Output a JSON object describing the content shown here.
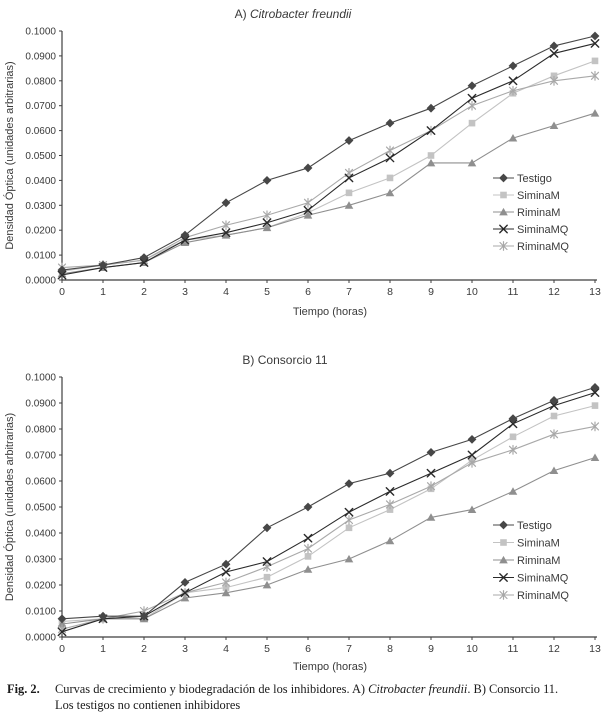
{
  "caption": {
    "label": "Fig. 2.",
    "line1_pre": "Curvas de crecimiento y biodegradación de los inhibidores. A) ",
    "line1_italic": "Citrobacter freundii",
    "line1_post": ". B) Consorcio 11.",
    "line2": "Los  testigos no contienen inhibidores"
  },
  "colors": {
    "axis": "#3f3f3f",
    "text": "#3a3a3a"
  },
  "chart_data": [
    {
      "type": "line",
      "title_parts": [
        {
          "text": "A) ",
          "italic": false
        },
        {
          "text": "Citrobacter freundii",
          "italic": true
        }
      ],
      "xlabel": "Tiempo (horas)",
      "ylabel": "Densidad Óptica (unidades arbitrarias)",
      "x": [
        0,
        1,
        2,
        3,
        4,
        5,
        6,
        7,
        8,
        9,
        10,
        11,
        12,
        13
      ],
      "ylim": [
        0,
        0.1
      ],
      "ytick_labels": [
        "0.0000",
        "0.0100",
        "0.0200",
        "0.0300",
        "0.0400",
        "0.0500",
        "0.0600",
        "0.0700",
        "0.0800",
        "0.0900",
        "0.1000"
      ],
      "grid": false,
      "legend_position": "inside-right",
      "series": [
        {
          "name": "Testigo",
          "marker": "diamond",
          "color": "#474747",
          "values": [
            0.004,
            0.006,
            0.009,
            0.018,
            0.031,
            0.04,
            0.045,
            0.056,
            0.063,
            0.069,
            0.078,
            0.086,
            0.094,
            0.098
          ]
        },
        {
          "name": "SiminaM",
          "marker": "square",
          "color": "#c3c3c3",
          "values": [
            0.0035,
            0.006,
            0.008,
            0.016,
            0.018,
            0.021,
            0.027,
            0.035,
            0.041,
            0.05,
            0.063,
            0.075,
            0.082,
            0.088
          ]
        },
        {
          "name": "RiminaM",
          "marker": "triangle",
          "color": "#8f8f8f",
          "values": [
            0.0025,
            0.005,
            0.007,
            0.015,
            0.018,
            0.021,
            0.026,
            0.03,
            0.035,
            0.047,
            0.047,
            0.057,
            0.062,
            0.067
          ]
        },
        {
          "name": "SiminaMQ",
          "marker": "x",
          "color": "#2a2a2a",
          "values": [
            0.002,
            0.005,
            0.007,
            0.016,
            0.019,
            0.023,
            0.028,
            0.041,
            0.049,
            0.06,
            0.073,
            0.08,
            0.091,
            0.095
          ]
        },
        {
          "name": "RiminaMQ",
          "marker": "asterisk",
          "color": "#a9a9a9",
          "values": [
            0.005,
            0.006,
            0.008,
            0.017,
            0.022,
            0.026,
            0.031,
            0.043,
            0.052,
            0.06,
            0.07,
            0.076,
            0.08,
            0.082
          ]
        }
      ]
    },
    {
      "type": "line",
      "title_parts": [
        {
          "text": "B) Consorcio 11",
          "italic": false
        }
      ],
      "xlabel": "Tiempo (horas)",
      "ylabel": "Densidad Óptica (unidades arbitrarias)",
      "x": [
        0,
        1,
        2,
        3,
        4,
        5,
        6,
        7,
        8,
        9,
        10,
        11,
        12,
        13
      ],
      "ylim": [
        0,
        0.1
      ],
      "ytick_labels": [
        "0.0000",
        "0.0100",
        "0.0200",
        "0.0300",
        "0.0400",
        "0.0500",
        "0.0600",
        "0.0700",
        "0.0800",
        "0.0900",
        "0.1000"
      ],
      "grid": false,
      "legend_position": "inside-right",
      "series": [
        {
          "name": "Testigo",
          "marker": "diamond",
          "color": "#474747",
          "values": [
            0.007,
            0.008,
            0.008,
            0.021,
            0.028,
            0.042,
            0.05,
            0.059,
            0.063,
            0.071,
            0.076,
            0.084,
            0.091,
            0.096
          ]
        },
        {
          "name": "SiminaM",
          "marker": "square",
          "color": "#c3c3c3",
          "values": [
            0.006,
            0.007,
            0.007,
            0.017,
            0.019,
            0.023,
            0.031,
            0.042,
            0.049,
            0.057,
            0.068,
            0.077,
            0.085,
            0.089
          ]
        },
        {
          "name": "RiminaM",
          "marker": "triangle",
          "color": "#8f8f8f",
          "values": [
            0.005,
            0.007,
            0.007,
            0.015,
            0.017,
            0.02,
            0.026,
            0.03,
            0.037,
            0.046,
            0.049,
            0.056,
            0.064,
            0.069
          ]
        },
        {
          "name": "SiminaMQ",
          "marker": "x",
          "color": "#2a2a2a",
          "values": [
            0.002,
            0.007,
            0.008,
            0.017,
            0.025,
            0.029,
            0.038,
            0.048,
            0.056,
            0.063,
            0.07,
            0.082,
            0.089,
            0.094
          ]
        },
        {
          "name": "RiminaMQ",
          "marker": "asterisk",
          "color": "#a9a9a9",
          "values": [
            0.003,
            0.007,
            0.01,
            0.017,
            0.021,
            0.027,
            0.034,
            0.045,
            0.051,
            0.058,
            0.067,
            0.072,
            0.078,
            0.081
          ]
        }
      ]
    }
  ]
}
